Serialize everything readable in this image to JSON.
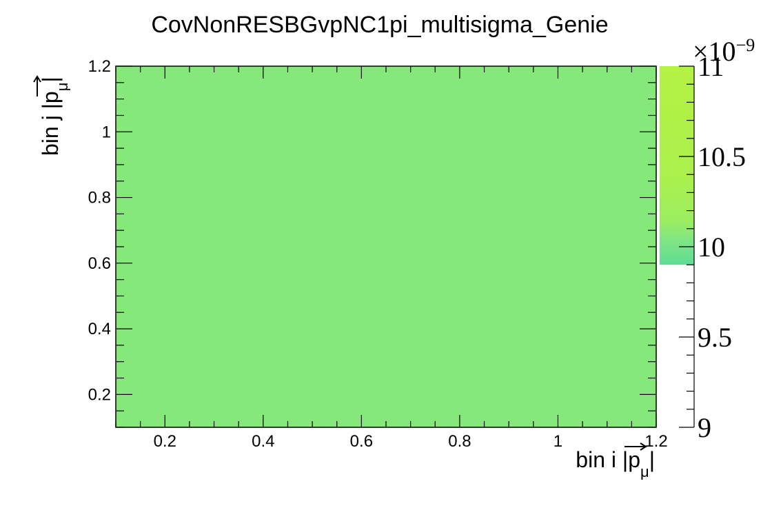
{
  "chart_data": {
    "type": "heatmap",
    "title": "CovNonRESBGvpNC1pi_multisigma_Genie",
    "xlabel": "bin i |p⃗μ|",
    "ylabel": "bin j |p⃗μ|",
    "xlabel_parts": {
      "text": "bin i |",
      "p": "p",
      "sub": "μ",
      "close": "|"
    },
    "ylabel_parts": {
      "text": "bin j |",
      "p": "p",
      "sub": "μ",
      "close": "|"
    },
    "xlim": [
      0.1,
      1.2
    ],
    "ylim": [
      0.1,
      1.2
    ],
    "xticks": [
      0.2,
      0.4,
      0.6,
      0.8,
      1,
      1.2
    ],
    "xtick_labels": [
      "0.2",
      "0.4",
      "0.6",
      "0.8",
      "1",
      "1.2"
    ],
    "yticks": [
      0.2,
      0.4,
      0.6,
      0.8,
      1,
      1.2
    ],
    "ytick_labels": [
      "0.2",
      "0.4",
      "0.6",
      "0.8",
      "1",
      "1.2"
    ],
    "cells": [
      {
        "x": [
          0.1,
          1.2
        ],
        "y": [
          0.1,
          1.2
        ],
        "value": 9.9e-09
      }
    ],
    "cell_color": "#86e87b",
    "zlim": [
      9e-09,
      1.1e-08
    ],
    "zticks": [
      9,
      9.5,
      10,
      10.5,
      11
    ],
    "ztick_labels": [
      "9",
      "9.5",
      "10",
      "10.5",
      "11"
    ],
    "z_multiplier": {
      "base": "×10",
      "exp": "−9"
    },
    "palette_range": [
      9.9,
      11
    ],
    "palette_colors": [
      "#5fdd94",
      "#86e87b",
      "#abf04c",
      "#b5f243"
    ],
    "grid": false
  }
}
